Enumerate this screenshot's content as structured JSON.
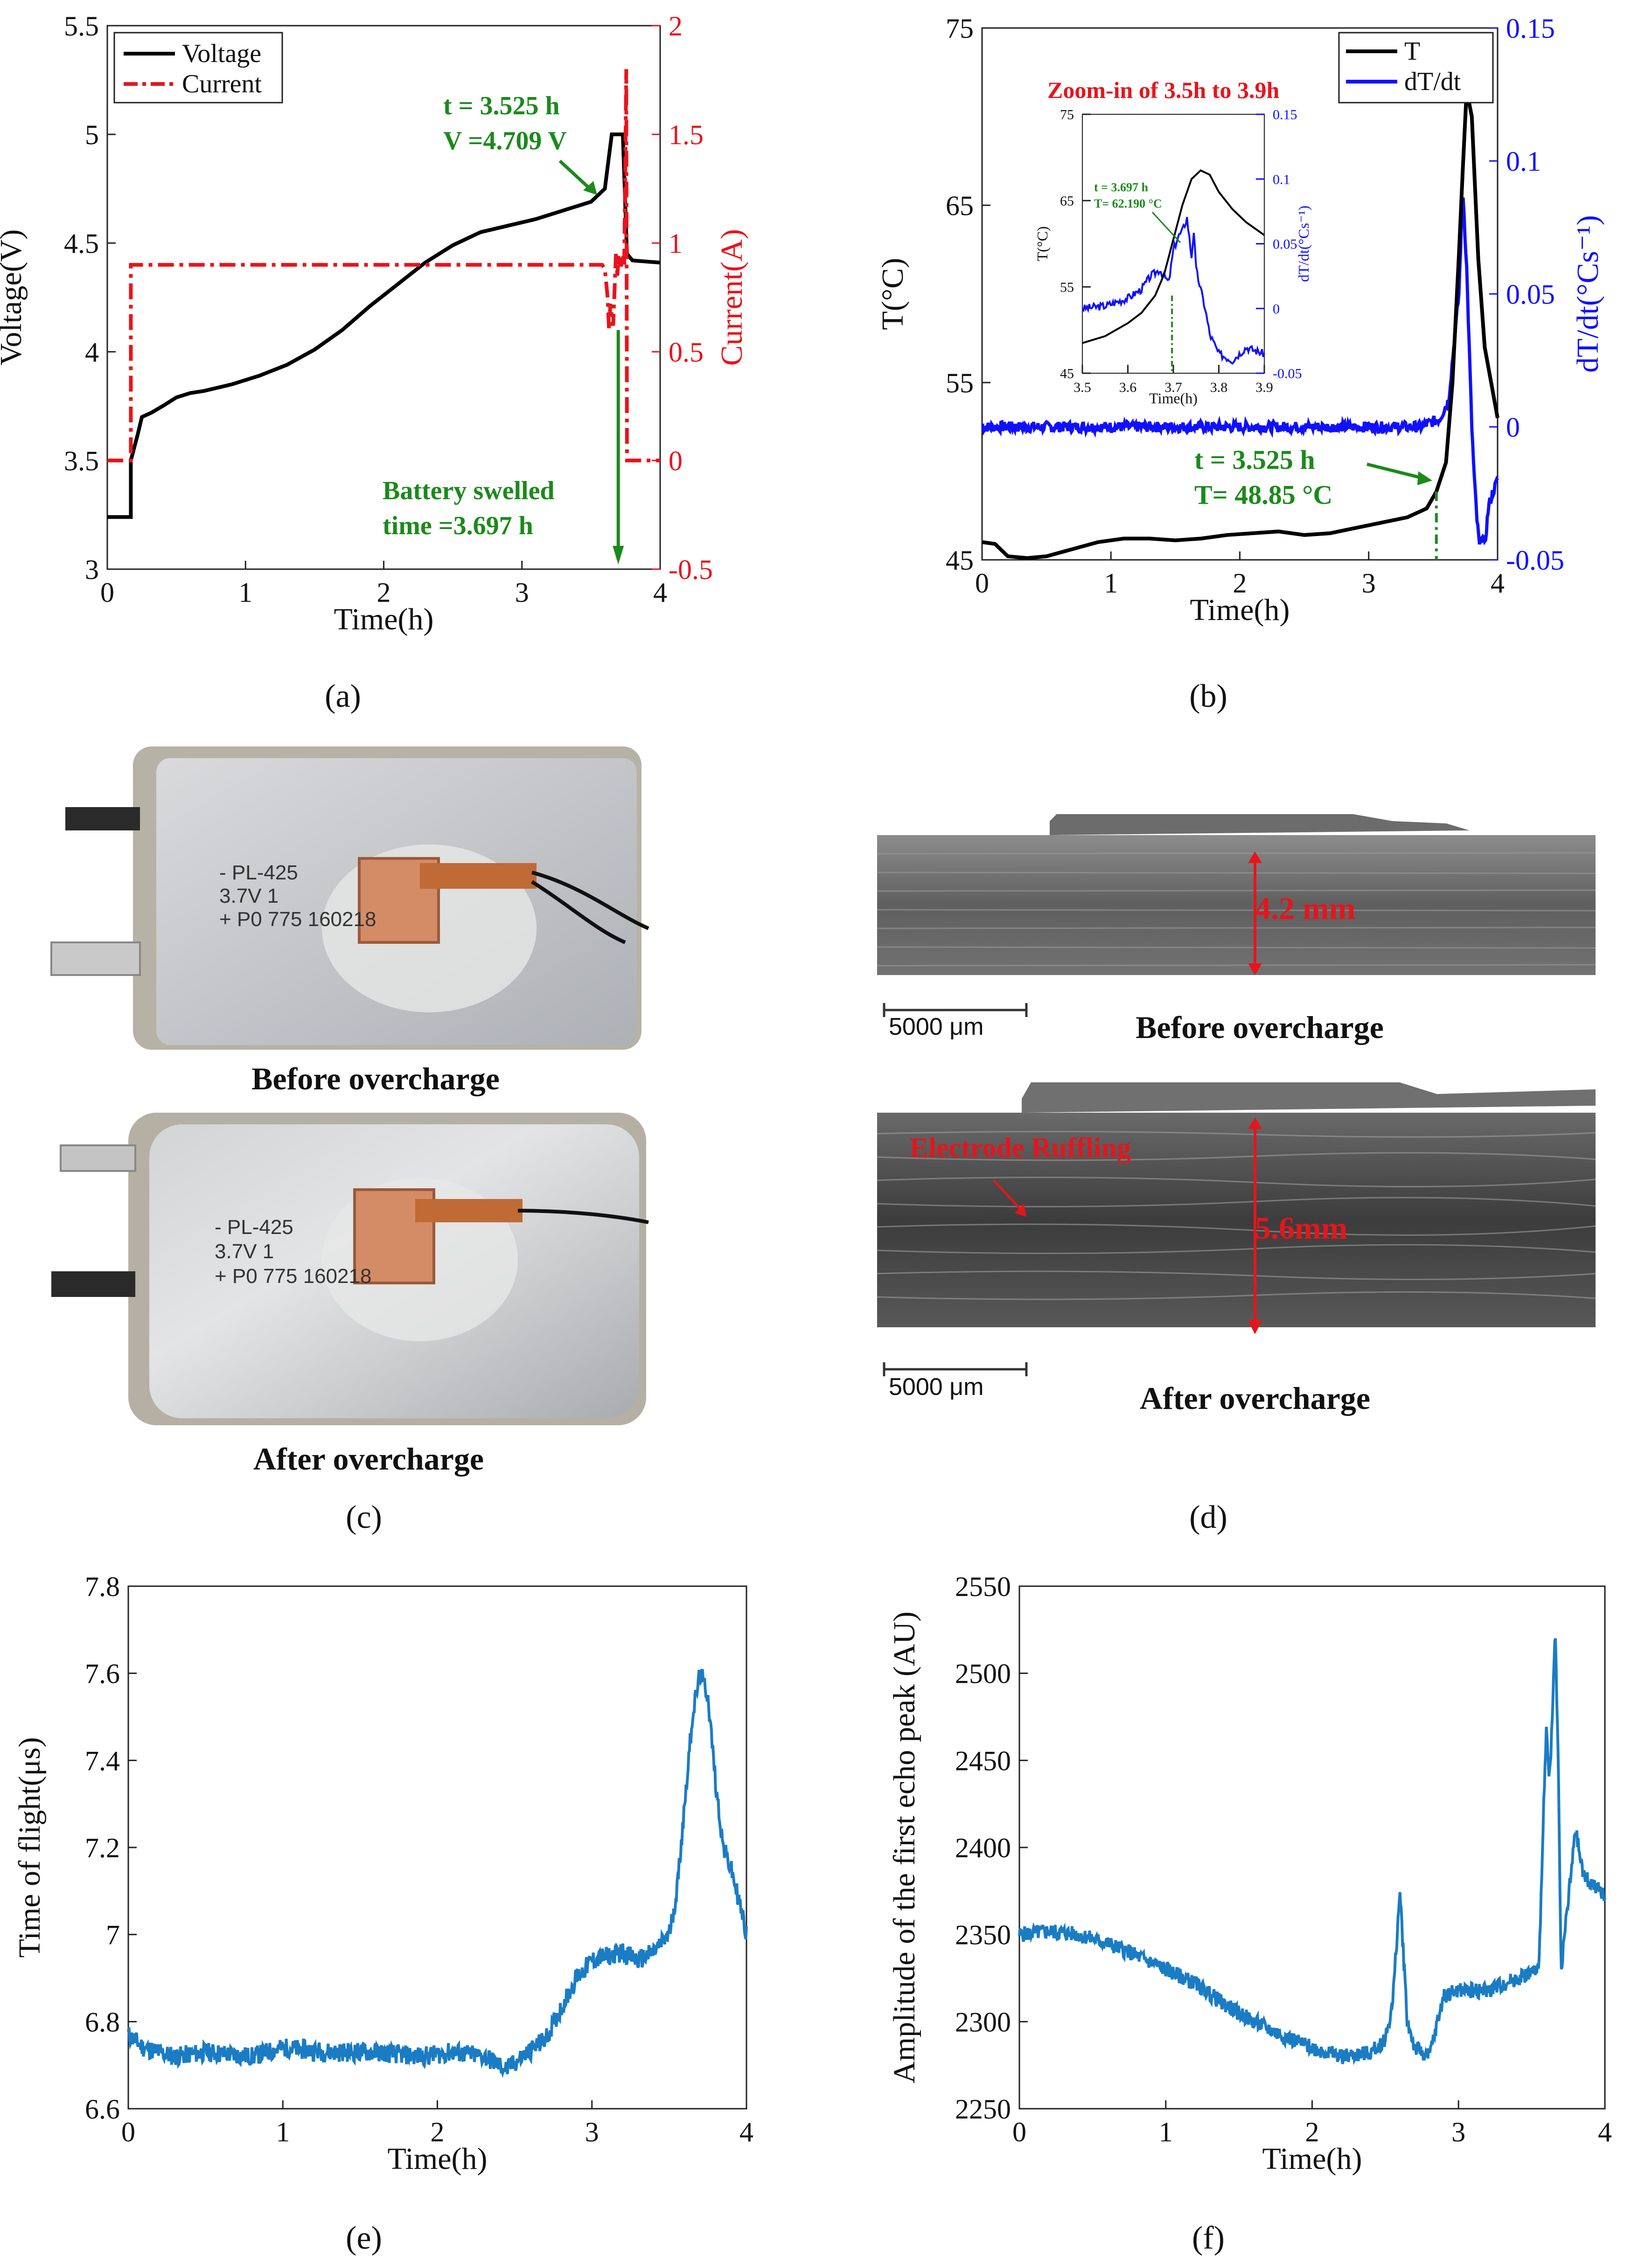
{
  "panel_labels": {
    "a": "(a)",
    "b": "(b)",
    "c": "(c)",
    "d": "(d)",
    "e": "(e)",
    "f": "(f)"
  },
  "chart_data": [
    {
      "id": "a",
      "type": "line",
      "xlabel": "Time(h)",
      "ylabel": "Voltage(V)",
      "ylabel_right": "Current(A)",
      "xlim": [
        0,
        4
      ],
      "ylim": [
        3,
        5.5
      ],
      "ylim_right": [
        -0.5,
        2
      ],
      "x_ticks": [
        "0",
        "1",
        "2",
        "3",
        "4"
      ],
      "y_ticks": [
        "3",
        "3.5",
        "4",
        "4.5",
        "5",
        "5.5"
      ],
      "y_ticks_right": [
        "-0.5",
        "0",
        "0.5",
        "1",
        "1.5",
        "2"
      ],
      "legend": [
        "Voltage",
        "Current"
      ],
      "annotation_1": [
        "t = 3.525 h",
        "V =4.709 V"
      ],
      "annotation_2": [
        "Battery swelled",
        "time =3.697 h"
      ],
      "colors": {
        "voltage": "#000000",
        "current": "#e8141b",
        "annot": "#1b8a1b"
      },
      "series": [
        {
          "name": "Voltage",
          "axis": "left",
          "x": [
            0,
            0.17,
            0.17,
            0.22,
            0.25,
            0.32,
            0.4,
            0.5,
            0.6,
            0.7,
            0.9,
            1.1,
            1.3,
            1.5,
            1.7,
            1.9,
            2.1,
            2.3,
            2.4,
            2.5,
            2.7,
            2.9,
            3.1,
            3.3,
            3.5,
            3.6,
            3.62,
            3.65,
            3.7,
            3.73,
            3.76,
            3.8,
            4.0
          ],
          "y": [
            3.24,
            3.24,
            3.5,
            3.62,
            3.7,
            3.72,
            3.75,
            3.79,
            3.81,
            3.82,
            3.85,
            3.89,
            3.94,
            4.01,
            4.1,
            4.21,
            4.31,
            4.41,
            4.45,
            4.49,
            4.55,
            4.58,
            4.61,
            4.65,
            4.69,
            4.75,
            4.85,
            5.0,
            5.0,
            5.0,
            4.45,
            4.42,
            4.41
          ]
        },
        {
          "name": "Current",
          "axis": "right",
          "x": [
            0,
            0.17,
            0.17,
            3.58,
            3.6,
            3.62,
            3.63,
            3.64,
            3.66,
            3.67,
            3.68,
            3.69,
            3.7,
            3.71,
            3.72,
            3.73,
            3.74,
            3.75,
            3.755,
            3.76,
            3.77,
            3.8,
            4.0
          ],
          "y": [
            0,
            0,
            0.9,
            0.9,
            0.88,
            0.75,
            0.6,
            0.72,
            0.62,
            0.78,
            0.95,
            0.85,
            0.95,
            0.9,
            0.9,
            0.95,
            0.9,
            1.5,
            1.8,
            0,
            0,
            0,
            0
          ]
        }
      ],
      "vline_x": 3.697
    },
    {
      "id": "b",
      "type": "line",
      "xlabel": "Time(h)",
      "ylabel": "T(°C)",
      "ylabel_right": "dT/dt(°Cs⁻¹)",
      "xlim": [
        0,
        4
      ],
      "ylim": [
        45,
        75
      ],
      "ylim_right": [
        -0.05,
        0.15
      ],
      "x_ticks": [
        "0",
        "1",
        "2",
        "3",
        "4"
      ],
      "y_ticks": [
        "45",
        "55",
        "65",
        "75"
      ],
      "y_ticks_right": [
        "-0.05",
        "0",
        "0.05",
        "0.1",
        "0.15"
      ],
      "legend": [
        "T",
        "dT/dt"
      ],
      "zoom_title": "Zoom-in  of 3.5h to 3.9h",
      "annotation": [
        "t = 3.525 h",
        "T= 48.85 °C"
      ],
      "colors": {
        "T": "#000000",
        "dT": "#1010ff",
        "annot": "#1b8a1b",
        "zoom": "#e8141b"
      },
      "series": [
        {
          "name": "T",
          "axis": "left",
          "x": [
            0,
            0.1,
            0.2,
            0.35,
            0.5,
            0.7,
            0.9,
            1.1,
            1.3,
            1.5,
            1.7,
            1.9,
            2.1,
            2.3,
            2.5,
            2.7,
            2.9,
            3.1,
            3.3,
            3.45,
            3.525,
            3.6,
            3.65,
            3.7,
            3.73,
            3.76,
            3.8,
            3.85,
            3.9,
            4.0
          ],
          "y": [
            46,
            45.9,
            45.2,
            45.1,
            45.2,
            45.6,
            46,
            46.2,
            46.2,
            46.1,
            46.2,
            46.4,
            46.5,
            46.6,
            46.4,
            46.5,
            46.8,
            47.1,
            47.4,
            47.9,
            48.85,
            50.5,
            55,
            62.2,
            67,
            71.5,
            70,
            62,
            57,
            53
          ]
        },
        {
          "name": "dT/dt",
          "axis": "right",
          "x": [
            0,
            0.5,
            1.0,
            1.5,
            2.0,
            2.5,
            3.0,
            3.4,
            3.55,
            3.62,
            3.66,
            3.7,
            3.73,
            3.76,
            3.78,
            3.8,
            3.82,
            3.84,
            3.86,
            3.88,
            3.9,
            3.93,
            3.96,
            4.0
          ],
          "y": [
            0,
            0,
            0,
            0,
            0,
            0,
            0,
            0,
            0.003,
            0.01,
            0.03,
            0.05,
            0.09,
            0.06,
            0.03,
            0.0,
            -0.02,
            -0.035,
            -0.045,
            -0.04,
            -0.045,
            -0.03,
            -0.025,
            -0.02
          ]
        }
      ],
      "inset": {
        "xlim": [
          3.5,
          3.9
        ],
        "ylim": [
          45,
          75
        ],
        "ylim_right": [
          -0.05,
          0.15
        ],
        "x_ticks": [
          "3.5",
          "3.6",
          "3.7",
          "3.8",
          "3.9"
        ],
        "y_ticks": [
          "45",
          "55",
          "65",
          "75"
        ],
        "y_ticks_right": [
          "-0.05",
          "0",
          "0.05",
          "0.1",
          "0.15"
        ],
        "xlabel": "Time(h)",
        "ylabel": "T(°C)",
        "ylabel_right": "dT/dt(°Cs⁻¹)",
        "annotation": [
          "t = 3.697 h",
          "T= 62.190 °C"
        ],
        "series": [
          {
            "name": "T",
            "axis": "left",
            "x": [
              3.5,
              3.55,
              3.6,
              3.63,
              3.66,
              3.68,
              3.7,
              3.72,
              3.74,
              3.76,
              3.78,
              3.8,
              3.83,
              3.86,
              3.9
            ],
            "y": [
              48.5,
              49.3,
              50.8,
              52,
              54,
              56.5,
              60.5,
              64.5,
              67.5,
              68.5,
              68,
              66,
              64,
              62.5,
              61
            ]
          },
          {
            "name": "dT/dt",
            "axis": "right",
            "x": [
              3.5,
              3.55,
              3.6,
              3.63,
              3.65,
              3.67,
              3.69,
              3.7,
              3.71,
              3.72,
              3.73,
              3.74,
              3.745,
              3.75,
              3.76,
              3.77,
              3.78,
              3.8,
              3.83,
              3.86,
              3.9
            ],
            "y": [
              0.0,
              0.002,
              0.008,
              0.015,
              0.025,
              0.03,
              0.02,
              0.045,
              0.055,
              0.06,
              0.07,
              0.04,
              0.06,
              0.03,
              0.015,
              0.0,
              -0.02,
              -0.035,
              -0.04,
              -0.03,
              -0.035
            ]
          }
        ]
      },
      "vline_x": 3.525
    },
    {
      "id": "e",
      "type": "line",
      "xlabel": "Time(h)",
      "ylabel": "Time of flight(μs)",
      "xlim": [
        0,
        4
      ],
      "ylim": [
        6.6,
        7.8
      ],
      "x_ticks": [
        "0",
        "1",
        "2",
        "3",
        "4"
      ],
      "y_ticks": [
        "6.6",
        "6.8",
        "7",
        "7.2",
        "7.4",
        "7.6",
        "7.8"
      ],
      "colors": {
        "line": "#1a7cc4"
      },
      "series": [
        {
          "name": "ToF",
          "x": [
            0,
            0.1,
            0.3,
            0.5,
            0.8,
            1.0,
            1.3,
            1.6,
            1.9,
            2.1,
            2.3,
            2.45,
            2.55,
            2.7,
            2.8,
            2.9,
            3.0,
            3.1,
            3.2,
            3.3,
            3.4,
            3.5,
            3.55,
            3.6,
            3.65,
            3.7,
            3.75,
            3.8,
            3.85,
            3.9,
            3.95,
            4.0
          ],
          "y": [
            6.77,
            6.74,
            6.72,
            6.73,
            6.72,
            6.74,
            6.73,
            6.73,
            6.72,
            6.73,
            6.72,
            6.69,
            6.72,
            6.76,
            6.83,
            6.9,
            6.94,
            6.95,
            6.96,
            6.94,
            6.96,
            7.0,
            7.1,
            7.3,
            7.5,
            7.6,
            7.55,
            7.35,
            7.2,
            7.15,
            7.08,
            7.0
          ]
        }
      ]
    },
    {
      "id": "f",
      "type": "line",
      "xlabel": "Time(h)",
      "ylabel": "Amplitude of the first echo peak (AU)",
      "xlim": [
        0,
        4
      ],
      "ylim": [
        2250,
        2550
      ],
      "x_ticks": [
        "0",
        "1",
        "2",
        "3",
        "4"
      ],
      "y_ticks": [
        "2250",
        "2300",
        "2350",
        "2400",
        "2450",
        "2500",
        "2550"
      ],
      "colors": {
        "line": "#1a7cc4"
      },
      "series": [
        {
          "name": "Amplitude",
          "x": [
            0,
            0.2,
            0.4,
            0.6,
            0.8,
            1.0,
            1.2,
            1.4,
            1.6,
            1.8,
            2.0,
            2.2,
            2.4,
            2.5,
            2.55,
            2.6,
            2.65,
            2.7,
            2.8,
            2.9,
            3.0,
            3.2,
            3.4,
            3.55,
            3.58,
            3.6,
            3.62,
            3.64,
            3.66,
            3.68,
            3.7,
            3.75,
            3.8,
            3.85,
            3.9,
            4.0
          ],
          "y": [
            2350,
            2352,
            2350,
            2345,
            2338,
            2330,
            2322,
            2310,
            2300,
            2292,
            2285,
            2280,
            2282,
            2290,
            2310,
            2375,
            2300,
            2285,
            2280,
            2315,
            2318,
            2318,
            2325,
            2330,
            2420,
            2465,
            2440,
            2470,
            2525,
            2460,
            2330,
            2370,
            2410,
            2385,
            2380,
            2372
          ]
        }
      ]
    }
  ],
  "photo_c": {
    "caption_before": "Before overcharge",
    "caption_after": "After overcharge",
    "label_lines": [
      "- PL-425",
      "3.7V 1",
      "+ P0 775 160218"
    ]
  },
  "ct_d": {
    "caption_before": "Before overcharge",
    "caption_after": "After overcharge",
    "thickness_before": "4.2 mm",
    "thickness_after": "5.6mm",
    "ruffling": "Electrode Ruffling",
    "scale_bar": "5000 μm"
  }
}
